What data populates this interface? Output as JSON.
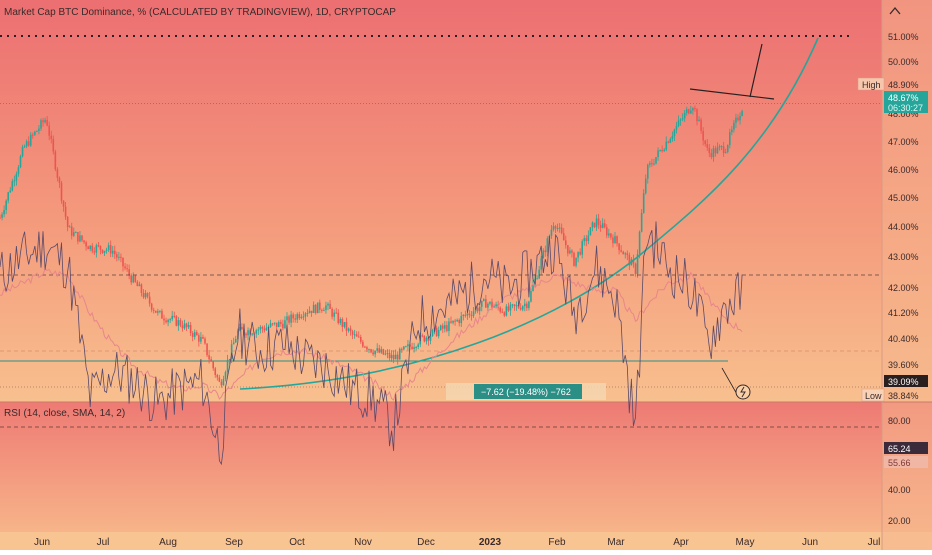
{
  "header": {
    "title": "Market Cap BTC Dominance, % (CALCULATED BY TRADINGVIEW), 1D, CRYPTOCAP",
    "arrow_icon": "chevron-up-icon"
  },
  "main_chart": {
    "y_ticks": [
      "51.00%",
      "50.00%",
      "48.00%",
      "47.00%",
      "46.00%",
      "45.00%",
      "44.00%",
      "43.00%",
      "42.00%",
      "41.20%",
      "40.40%",
      "39.60%",
      "38.84%"
    ],
    "high_label": "High",
    "high_value": "48.90%",
    "last_price": "48.67%",
    "countdown": "06:30:27",
    "level_value": "39.09%",
    "low_label": "Low",
    "low_value": "38.84%",
    "measure_text": "−7.62 (−19.48%) −762",
    "colors": {
      "up": "#26a69a",
      "down": "#ef5350",
      "line": "#26a69a",
      "price_tag": "#26a69a"
    }
  },
  "rsi_panel": {
    "title": "RSI (14, close, SMA, 14, 2)",
    "y_ticks": [
      "80.00",
      "40.00",
      "20.00"
    ],
    "rsi_value": "65.24",
    "sma_value": "55.66",
    "colors": {
      "rsi": "#7e57c2",
      "sma": "#e8868a"
    }
  },
  "x_axis": {
    "labels": [
      "Jun",
      "Jul",
      "Aug",
      "Sep",
      "Oct",
      "Nov",
      "Dec",
      "2023",
      "Feb",
      "Mar",
      "Apr",
      "May",
      "Jun",
      "Jul"
    ]
  },
  "chart_data": [
    {
      "type": "candlestick",
      "title": "Market Cap BTC Dominance, % (CALCULATED BY TRADINGVIEW), 1D, CRYPTOCAP",
      "ylim": [
        38.8,
        51.3
      ],
      "x": [
        "2022-05-25",
        "2022-06-05",
        "2022-06-15",
        "2022-06-25",
        "2022-07-05",
        "2022-07-15",
        "2022-07-25",
        "2022-08-05",
        "2022-08-15",
        "2022-08-25",
        "2022-09-02",
        "2022-09-10",
        "2022-09-20",
        "2022-10-01",
        "2022-10-10",
        "2022-10-20",
        "2022-11-01",
        "2022-11-10",
        "2022-11-20",
        "2022-12-01",
        "2022-12-15",
        "2023-01-01",
        "2023-01-10",
        "2023-01-20",
        "2023-02-01",
        "2023-02-10",
        "2023-02-20",
        "2023-03-01",
        "2023-03-10",
        "2023-03-15",
        "2023-03-25",
        "2023-04-05",
        "2023-04-12",
        "2023-04-20",
        "2023-04-28"
      ],
      "close": [
        44.8,
        47.2,
        48.2,
        44.4,
        43.8,
        43.7,
        42.6,
        41.5,
        41.2,
        40.6,
        39.1,
        40.9,
        41.0,
        41.2,
        41.6,
        41.8,
        40.8,
        40.3,
        40.0,
        40.6,
        41.1,
        41.9,
        41.6,
        41.9,
        44.7,
        43.3,
        44.7,
        44.0,
        43.0,
        46.4,
        47.5,
        48.7,
        47.0,
        47.2,
        48.67
      ],
      "curve_support": [
        [
          "2022-09-08",
          38.84
        ],
        [
          "2022-12-01",
          39.5
        ],
        [
          "2023-01-20",
          41.0
        ],
        [
          "2023-03-10",
          43.0
        ],
        [
          "2023-04-20",
          47.0
        ],
        [
          "2023-06-01",
          51.0
        ]
      ],
      "horizontal_levels": [
        51.0,
        48.9,
        39.6
      ],
      "high": 48.9,
      "low": 38.84,
      "last": 48.67
    },
    {
      "type": "line",
      "title": "RSI (14, close, SMA, 14, 2)",
      "ylim": [
        20,
        90
      ],
      "reference_lines": [
        70,
        50,
        30
      ],
      "series": [
        {
          "name": "RSI",
          "values": [
            70,
            75,
            78,
            72,
            38,
            45,
            42,
            36,
            40,
            42,
            24,
            55,
            50,
            52,
            48,
            46,
            40,
            38,
            30,
            58,
            62,
            70,
            66,
            70,
            78,
            60,
            72,
            64,
            30,
            82,
            72,
            66,
            52,
            62,
            65.24
          ]
        },
        {
          "name": "SMA",
          "values": [
            65,
            68,
            71,
            70,
            60,
            52,
            46,
            42,
            40,
            41,
            38,
            42,
            48,
            50,
            50,
            48,
            45,
            42,
            38,
            44,
            52,
            60,
            64,
            66,
            70,
            68,
            66,
            66,
            58,
            62,
            68,
            70,
            64,
            58,
            55.66
          ]
        }
      ]
    }
  ]
}
